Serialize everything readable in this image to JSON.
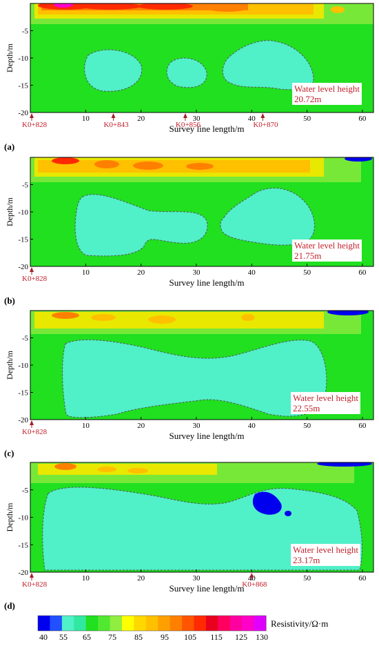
{
  "figure": {
    "panels": [
      {
        "id": "(a)",
        "water_label": "Water level height",
        "water_value": "20.72m",
        "markers": [
          {
            "text": "K0+828",
            "x": 0
          },
          {
            "text": "K0+843",
            "x": 15
          },
          {
            "text": "K0+856",
            "x": 28
          },
          {
            "text": "K0+870",
            "x": 42
          }
        ]
      },
      {
        "id": "(b)",
        "water_label": "Water level height",
        "water_value": "21.75m",
        "markers": [
          {
            "text": "K0+828",
            "x": 0
          }
        ]
      },
      {
        "id": "(c)",
        "water_label": "Water level height",
        "water_value": "22.55m",
        "markers": [
          {
            "text": "K0+828",
            "x": 0
          }
        ]
      },
      {
        "id": "(d)",
        "water_label": "Water level height",
        "water_value": "23.17m",
        "markers": [
          {
            "text": "K0+828",
            "x": 0
          },
          {
            "text": "K0+868",
            "x": 40
          }
        ]
      }
    ],
    "colorbar": {
      "label": "Resistivity/Ω·m",
      "ticks": [
        "40",
        "55",
        "65",
        "75",
        "85",
        "95",
        "105",
        "115",
        "125",
        "130"
      ]
    }
  },
  "chart_data": [
    {
      "type": "heatmap",
      "panel": "(a)",
      "xlabel": "Survey line length/m",
      "ylabel": "Depth/m",
      "xlim": [
        0,
        62
      ],
      "ylim": [
        -20,
        0
      ],
      "xticks": [
        10,
        20,
        30,
        40,
        50,
        60
      ],
      "yticks": [
        -5,
        -10,
        -15,
        -20
      ],
      "water_level_height_m": 20.72,
      "description_values": {
        "surface_high_resistivity_max": 125,
        "low_zone_resistivity": 55
      },
      "low_zones": [
        {
          "x": [
            10,
            26
          ],
          "y": [
            -16,
            -8
          ]
        },
        {
          "x": [
            26,
            34
          ],
          "y": [
            -16,
            -9
          ]
        },
        {
          "x": [
            37,
            53
          ],
          "y": [
            -16,
            -5
          ]
        }
      ]
    },
    {
      "type": "heatmap",
      "panel": "(b)",
      "xlabel": "Survey line length/m",
      "ylabel": "Depth/m",
      "xlim": [
        0,
        62
      ],
      "ylim": [
        -20,
        0
      ],
      "xticks": [
        10,
        20,
        30,
        40,
        50,
        60
      ],
      "yticks": [
        -5,
        -10,
        -15,
        -20
      ],
      "water_level_height_m": 21.75,
      "low_zones": [
        {
          "x": [
            8,
            33
          ],
          "y": [
            -18,
            -7
          ]
        },
        {
          "x": [
            36,
            54
          ],
          "y": [
            -17,
            -5
          ]
        }
      ]
    },
    {
      "type": "heatmap",
      "panel": "(c)",
      "xlabel": "Survey line length/m",
      "ylabel": "Depth/m",
      "xlim": [
        0,
        62
      ],
      "ylim": [
        -20,
        0
      ],
      "xticks": [
        10,
        20,
        30,
        40,
        50,
        60
      ],
      "yticks": [
        -5,
        -10,
        -15,
        -20
      ],
      "water_level_height_m": 22.55,
      "low_zones": [
        {
          "x": [
            6,
            54
          ],
          "y": [
            -20,
            -5
          ]
        }
      ]
    },
    {
      "type": "heatmap",
      "panel": "(d)",
      "xlabel": "Survey line length/m",
      "ylabel": "Depth/m",
      "xlim": [
        0,
        62
      ],
      "ylim": [
        -20,
        0
      ],
      "xticks": [
        10,
        20,
        30,
        40,
        50,
        60
      ],
      "yticks": [
        -5,
        -10,
        -15,
        -20
      ],
      "water_level_height_m": 23.17,
      "low_zones": [
        {
          "x": [
            2,
            61
          ],
          "y": [
            -20,
            -4
          ]
        }
      ],
      "very_low_pocket": {
        "x": [
          41,
          47
        ],
        "y": [
          -10,
          -6
        ],
        "resistivity": 40
      }
    }
  ],
  "colors": {
    "c40": "#0000ee",
    "c55": "#50f0c8",
    "c65": "#20e020",
    "c75": "#ffff00",
    "c85": "#ffc000",
    "c95": "#ff8000",
    "c105": "#ff2a00",
    "c115": "#e8001e",
    "c125": "#ff00c8",
    "annotation": "#c0202a"
  }
}
